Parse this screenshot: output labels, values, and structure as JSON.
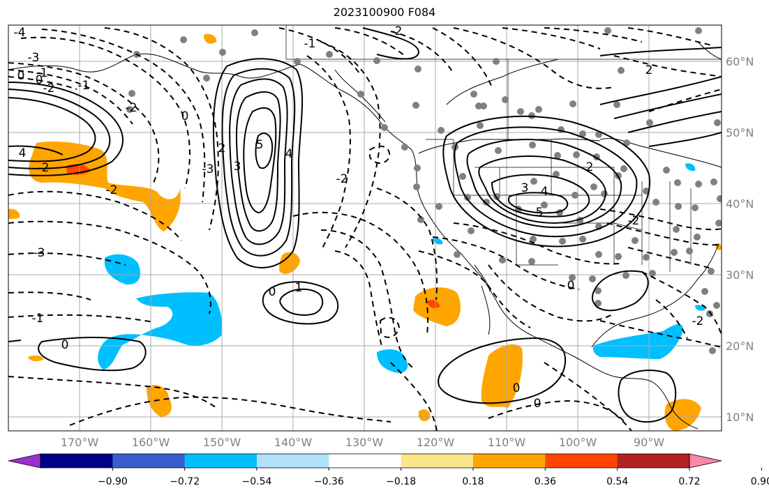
{
  "title": "2023100900 F084",
  "lat_labels": [
    "60°N",
    "50°N",
    "40°N",
    "30°N",
    "20°N",
    "10°N"
  ],
  "lon_labels": [
    "170°W",
    "160°W",
    "150°W",
    "140°W",
    "130°W",
    "120°W",
    "110°W",
    "100°W",
    "90°W"
  ],
  "colorbar": {
    "tick_labels": [
      "−0.90",
      "−0.72",
      "−0.54",
      "−0.36",
      "−0.18",
      "0.18",
      "0.36",
      "0.54",
      "0.72",
      "0.90"
    ],
    "colors": [
      "#9b30d0",
      "#00008b",
      "#3a5fcd",
      "#00bfff",
      "#b0e0fa",
      "#ffffff",
      "#fbe68a",
      "#ffa500",
      "#ff4500",
      "#b22222",
      "#f988a8"
    ]
  },
  "contour_labels": [
    "-4",
    "-3",
    "0",
    "-1",
    "-2",
    "-1",
    "-2",
    "-3",
    "4",
    "-2",
    "0",
    "-2",
    "-3",
    "-1",
    "0",
    "5",
    "4",
    "3",
    "2",
    "0",
    "1",
    "-2",
    "-1",
    "0",
    "-2",
    "3",
    "4",
    "5",
    "2",
    "-2",
    "0",
    "-2",
    "0",
    "0",
    "2"
  ],
  "colors": {
    "land_border": "#000000",
    "grid": "#a9a9a9",
    "station_dot": "#808080"
  }
}
